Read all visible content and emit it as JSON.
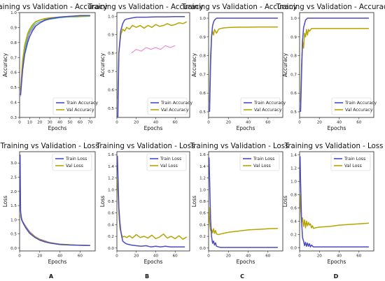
{
  "figure": {
    "column_labels": [
      "A",
      "B",
      "C",
      "D"
    ]
  },
  "colors": {
    "train": "#4c4cc0",
    "val": "#b8a400",
    "extra_pink": "#e97cd0",
    "extra_green": "#5fd068",
    "extra_teal": "#3aa8b8",
    "extra_purple": "#9b59c9"
  },
  "chart_data": [
    {
      "type": "line",
      "id": "acc_A",
      "title": "Training vs Validation - Accuracy",
      "xlabel": "Epochs",
      "ylabel": "Accuracy",
      "xlim": [
        0,
        75
      ],
      "ylim": [
        0.3,
        1.0
      ],
      "xticks": [
        0,
        10,
        20,
        30,
        40,
        50,
        60,
        70
      ],
      "yticks": [
        0.3,
        0.4,
        0.5,
        0.6,
        0.7,
        0.8,
        0.9,
        1.0
      ],
      "legend_position": "lower-right",
      "series": [
        {
          "name": "Train Accuracy",
          "role": "train",
          "x": [
            1,
            3,
            5,
            8,
            10,
            13,
            16,
            20,
            25,
            30,
            40,
            50,
            60,
            70
          ],
          "y": [
            0.45,
            0.62,
            0.72,
            0.8,
            0.84,
            0.88,
            0.91,
            0.93,
            0.95,
            0.96,
            0.97,
            0.975,
            0.98,
            0.98
          ]
        },
        {
          "name": "Val Accuracy",
          "role": "val",
          "x": [
            1,
            3,
            5,
            8,
            10,
            13,
            16,
            20,
            25,
            30,
            40,
            50,
            60,
            70
          ],
          "y": [
            0.48,
            0.68,
            0.78,
            0.86,
            0.89,
            0.92,
            0.94,
            0.95,
            0.96,
            0.965,
            0.97,
            0.975,
            0.975,
            0.98
          ]
        },
        {
          "role": "extra_pink",
          "x": [
            1,
            3,
            5,
            8,
            10,
            15,
            20,
            30,
            40,
            55,
            70
          ],
          "y": [
            0.44,
            0.6,
            0.72,
            0.82,
            0.86,
            0.91,
            0.93,
            0.96,
            0.97,
            0.975,
            0.98
          ]
        },
        {
          "role": "extra_green",
          "x": [
            1,
            3,
            5,
            8,
            10,
            15,
            20,
            30,
            40,
            55,
            70
          ],
          "y": [
            0.47,
            0.66,
            0.76,
            0.85,
            0.88,
            0.93,
            0.95,
            0.96,
            0.97,
            0.97,
            0.975
          ]
        },
        {
          "role": "extra_teal",
          "x": [
            1,
            3,
            5,
            8,
            10,
            15,
            20,
            30,
            40,
            55,
            70
          ],
          "y": [
            0.46,
            0.64,
            0.74,
            0.83,
            0.87,
            0.92,
            0.94,
            0.955,
            0.965,
            0.975,
            0.98
          ]
        }
      ]
    },
    {
      "type": "line",
      "id": "acc_B",
      "title": "Training vs Validation - Accuracy",
      "xlabel": "Epochs",
      "ylabel": "Accuracy",
      "xlim": [
        0,
        75
      ],
      "ylim": [
        0.45,
        1.02
      ],
      "xticks": [
        0,
        20,
        40,
        60
      ],
      "yticks": [
        0.5,
        0.6,
        0.7,
        0.8,
        0.9,
        1.0
      ],
      "legend_position": "lower-right",
      "series": [
        {
          "name": "Train Accuracy",
          "role": "train",
          "x": [
            1,
            2,
            4,
            6,
            8,
            10,
            15,
            20,
            30,
            40,
            50,
            60,
            70
          ],
          "y": [
            0.45,
            0.8,
            0.92,
            0.96,
            0.98,
            0.985,
            0.99,
            0.995,
            0.995,
            0.997,
            0.997,
            0.998,
            0.998
          ]
        },
        {
          "name": "Val Accuracy",
          "role": "val",
          "x": [
            1,
            2,
            4,
            6,
            8,
            10,
            13,
            16,
            20,
            24,
            28,
            32,
            36,
            40,
            44,
            48,
            52,
            56,
            60,
            64,
            68,
            72
          ],
          "y": [
            0.55,
            0.8,
            0.9,
            0.93,
            0.92,
            0.94,
            0.93,
            0.95,
            0.94,
            0.95,
            0.935,
            0.95,
            0.94,
            0.955,
            0.945,
            0.95,
            0.96,
            0.95,
            0.955,
            0.965,
            0.96,
            0.97
          ]
        },
        {
          "role": "extra_pink",
          "x": [
            15,
            20,
            25,
            30,
            35,
            40,
            45,
            50,
            55,
            60
          ],
          "y": [
            0.8,
            0.82,
            0.81,
            0.83,
            0.82,
            0.83,
            0.82,
            0.84,
            0.83,
            0.84
          ]
        }
      ]
    },
    {
      "type": "line",
      "id": "acc_C",
      "title": "Training vs Validation - Accuracy",
      "xlabel": "Epochs",
      "ylabel": "Accuracy",
      "xlim": [
        0,
        75
      ],
      "ylim": [
        0.47,
        1.03
      ],
      "xticks": [
        0,
        20,
        40,
        60
      ],
      "yticks": [
        0.5,
        0.6,
        0.7,
        0.8,
        0.9,
        1.0
      ],
      "legend_position": "lower-right",
      "series": [
        {
          "name": "Train Accuracy",
          "role": "train",
          "x": [
            1,
            2,
            3,
            4,
            5,
            6,
            8,
            10,
            15,
            20,
            30,
            40,
            50,
            60,
            70
          ],
          "y": [
            0.5,
            0.75,
            0.9,
            0.96,
            0.98,
            0.99,
            1.0,
            1.0,
            1.0,
            1.0,
            1.0,
            1.0,
            1.0,
            1.0,
            1.0
          ]
        },
        {
          "name": "Val Accuracy",
          "role": "val",
          "x": [
            1,
            2,
            3,
            4,
            5,
            6,
            8,
            10,
            12,
            15,
            20,
            30,
            40,
            50,
            60,
            70
          ],
          "y": [
            0.55,
            0.8,
            0.9,
            0.93,
            0.91,
            0.94,
            0.92,
            0.94,
            0.945,
            0.948,
            0.95,
            0.952,
            0.952,
            0.953,
            0.953,
            0.953
          ]
        }
      ]
    },
    {
      "type": "line",
      "id": "acc_D",
      "title": "Training vs Validation - Accuracy",
      "xlabel": "Epochs",
      "ylabel": "Accuracy",
      "xlim": [
        0,
        75
      ],
      "ylim": [
        0.47,
        1.03
      ],
      "xticks": [
        0,
        20,
        40,
        60
      ],
      "yticks": [
        0.5,
        0.6,
        0.7,
        0.8,
        0.9,
        1.0
      ],
      "legend_position": "lower-right",
      "series": [
        {
          "name": "Train Accuracy",
          "role": "train",
          "x": [
            1,
            2,
            3,
            4,
            5,
            6,
            8,
            10,
            15,
            20,
            30,
            40,
            50,
            60,
            70
          ],
          "y": [
            0.5,
            0.7,
            0.88,
            0.95,
            0.97,
            0.99,
            1.0,
            1.0,
            1.0,
            1.0,
            1.0,
            1.0,
            1.0,
            1.0,
            1.0
          ]
        },
        {
          "name": "Val Accuracy",
          "role": "val",
          "x": [
            1,
            2,
            3,
            4,
            5,
            6,
            7,
            8,
            9,
            10,
            12,
            15,
            20,
            30,
            40,
            50,
            60,
            70
          ],
          "y": [
            0.55,
            0.75,
            0.88,
            0.84,
            0.92,
            0.9,
            0.94,
            0.91,
            0.94,
            0.93,
            0.945,
            0.945,
            0.945,
            0.945,
            0.945,
            0.945,
            0.945,
            0.945
          ]
        }
      ]
    },
    {
      "type": "line",
      "id": "loss_A",
      "title": "Training vs Validation - Loss",
      "xlabel": "Epochs",
      "ylabel": "Loss",
      "xlim": [
        0,
        75
      ],
      "ylim": [
        -0.1,
        3.4
      ],
      "xticks": [
        0,
        20,
        40,
        60
      ],
      "yticks": [
        0.0,
        0.5,
        1.0,
        1.5,
        2.0,
        2.5,
        3.0
      ],
      "legend_position": "upper-right",
      "series": [
        {
          "name": "Train Loss",
          "role": "train",
          "x": [
            0.5,
            1,
            2,
            4,
            6,
            8,
            10,
            15,
            20,
            25,
            30,
            40,
            50,
            60,
            70
          ],
          "y": [
            3.3,
            1.3,
            1.0,
            0.85,
            0.72,
            0.62,
            0.52,
            0.38,
            0.28,
            0.22,
            0.18,
            0.13,
            0.11,
            0.1,
            0.09
          ]
        },
        {
          "name": "Val Loss",
          "role": "val",
          "x": [
            1,
            2,
            4,
            6,
            8,
            10,
            15,
            20,
            25,
            30,
            40,
            50,
            60,
            70
          ],
          "y": [
            1.15,
            1.0,
            0.86,
            0.74,
            0.64,
            0.55,
            0.4,
            0.3,
            0.24,
            0.19,
            0.14,
            0.12,
            0.1,
            0.09
          ]
        },
        {
          "role": "extra_green",
          "x": [
            1,
            3,
            6,
            10,
            15,
            20,
            30,
            40,
            55,
            70
          ],
          "y": [
            1.1,
            0.9,
            0.72,
            0.52,
            0.38,
            0.28,
            0.17,
            0.12,
            0.1,
            0.09
          ]
        },
        {
          "role": "extra_purple",
          "x": [
            1,
            3,
            6,
            10,
            15,
            20,
            30,
            40,
            55,
            70
          ],
          "y": [
            1.2,
            0.95,
            0.78,
            0.58,
            0.42,
            0.32,
            0.2,
            0.14,
            0.11,
            0.1
          ]
        },
        {
          "role": "extra_teal",
          "x": [
            1,
            3,
            6,
            10,
            15,
            20,
            30,
            40,
            55,
            70
          ],
          "y": [
            1.15,
            0.92,
            0.75,
            0.55,
            0.4,
            0.3,
            0.19,
            0.13,
            0.105,
            0.095
          ]
        }
      ]
    },
    {
      "type": "line",
      "id": "loss_B",
      "title": "Training vs Validation - Loss",
      "xlabel": "Epochs",
      "ylabel": "Loss",
      "xlim": [
        0,
        75
      ],
      "ylim": [
        -0.05,
        1.65
      ],
      "xticks": [
        0,
        20,
        40,
        60
      ],
      "yticks": [
        0.0,
        0.2,
        0.4,
        0.6,
        0.8,
        1.0,
        1.2,
        1.4,
        1.6
      ],
      "legend_position": "upper-right",
      "series": [
        {
          "name": "Train Loss",
          "role": "train",
          "x": [
            0.5,
            1,
            2,
            3,
            4,
            5,
            6,
            8,
            10,
            15,
            20,
            25,
            30,
            35,
            40,
            45,
            50,
            55,
            60,
            65,
            70
          ],
          "y": [
            1.58,
            1.3,
            0.7,
            0.45,
            0.3,
            0.2,
            0.12,
            0.09,
            0.07,
            0.05,
            0.04,
            0.03,
            0.04,
            0.02,
            0.03,
            0.02,
            0.03,
            0.02,
            0.02,
            0.02,
            0.02
          ]
        },
        {
          "name": "Val Loss",
          "role": "val",
          "x": [
            0.5,
            1,
            2,
            3,
            4,
            5,
            6,
            8,
            10,
            13,
            16,
            20,
            24,
            28,
            32,
            36,
            40,
            44,
            48,
            52,
            56,
            60,
            64,
            68,
            72
          ],
          "y": [
            1.2,
            1.0,
            0.6,
            0.35,
            0.28,
            0.22,
            0.19,
            0.2,
            0.18,
            0.21,
            0.17,
            0.23,
            0.18,
            0.2,
            0.17,
            0.22,
            0.16,
            0.19,
            0.24,
            0.17,
            0.2,
            0.16,
            0.21,
            0.15,
            0.19
          ]
        }
      ]
    },
    {
      "type": "line",
      "id": "loss_C",
      "title": "Training vs Validation - Loss",
      "xlabel": "Epochs",
      "ylabel": "Loss",
      "xlim": [
        0,
        75
      ],
      "ylim": [
        -0.05,
        1.65
      ],
      "xticks": [
        0,
        20,
        40,
        60
      ],
      "yticks": [
        0.0,
        0.2,
        0.4,
        0.6,
        0.8,
        1.0,
        1.2,
        1.4,
        1.6
      ],
      "legend_position": "upper-right",
      "series": [
        {
          "name": "Train Loss",
          "role": "train",
          "x": [
            0.5,
            1,
            2,
            3,
            4,
            5,
            6,
            7,
            8,
            10,
            12,
            15,
            20,
            30,
            40,
            50,
            60,
            70
          ],
          "y": [
            1.55,
            1.2,
            0.5,
            0.2,
            0.08,
            0.12,
            0.05,
            0.09,
            0.03,
            0.02,
            0.01,
            0.01,
            0.01,
            0.01,
            0.01,
            0.01,
            0.01,
            0.01
          ]
        },
        {
          "name": "Val Loss",
          "role": "val",
          "x": [
            0.5,
            1,
            2,
            3,
            4,
            5,
            6,
            7,
            8,
            10,
            12,
            15,
            20,
            30,
            40,
            50,
            60,
            70
          ],
          "y": [
            0.7,
            0.45,
            0.3,
            0.32,
            0.26,
            0.33,
            0.25,
            0.3,
            0.24,
            0.23,
            0.24,
            0.25,
            0.27,
            0.29,
            0.31,
            0.32,
            0.33,
            0.335
          ]
        }
      ]
    },
    {
      "type": "line",
      "id": "loss_D",
      "title": "Training vs Validation - Loss",
      "xlabel": "Epochs",
      "ylabel": "Loss",
      "xlim": [
        0,
        75
      ],
      "ylim": [
        -0.05,
        1.45
      ],
      "xticks": [
        0,
        20,
        40,
        60
      ],
      "yticks": [
        0.0,
        0.2,
        0.4,
        0.6,
        0.8,
        1.0,
        1.2,
        1.4
      ],
      "legend_position": "upper-right",
      "series": [
        {
          "name": "Train Loss",
          "role": "train",
          "x": [
            0.5,
            1,
            2,
            3,
            4,
            5,
            6,
            7,
            8,
            9,
            10,
            11,
            12,
            14,
            16,
            20,
            30,
            40,
            50,
            60,
            70
          ],
          "y": [
            1.38,
            1.0,
            0.4,
            0.15,
            0.1,
            0.03,
            0.08,
            0.02,
            0.07,
            0.02,
            0.06,
            0.01,
            0.04,
            0.01,
            0.01,
            0.01,
            0.01,
            0.01,
            0.01,
            0.01,
            0.01
          ]
        },
        {
          "name": "Val Loss",
          "role": "val",
          "x": [
            0.5,
            1,
            2,
            3,
            4,
            5,
            6,
            7,
            8,
            9,
            10,
            11,
            12,
            13,
            14,
            16,
            20,
            30,
            40,
            50,
            60,
            70
          ],
          "y": [
            0.8,
            0.6,
            0.38,
            0.45,
            0.32,
            0.42,
            0.3,
            0.4,
            0.33,
            0.38,
            0.34,
            0.36,
            0.3,
            0.33,
            0.29,
            0.3,
            0.31,
            0.32,
            0.34,
            0.35,
            0.36,
            0.37
          ]
        }
      ]
    }
  ]
}
